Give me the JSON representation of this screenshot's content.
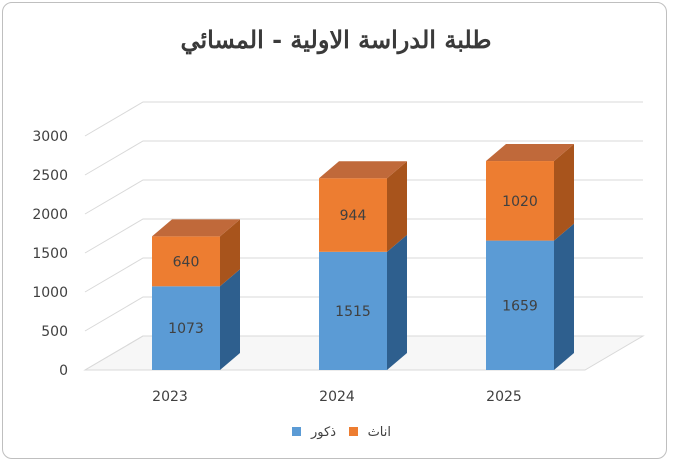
{
  "chart_data": {
    "type": "bar",
    "stacked": true,
    "three_d": true,
    "title": "طلبة الدراسة الاولية - المسائي",
    "categories": [
      "2023",
      "2024",
      "2025"
    ],
    "series": [
      {
        "name": "ذكور",
        "values": [
          1073,
          1515,
          1659
        ],
        "color": "#5b9bd5",
        "side_color": "#2e5f8e"
      },
      {
        "name": "اناث",
        "values": [
          640,
          944,
          1020
        ],
        "color": "#ed7d31",
        "side_color": "#a8541c"
      }
    ],
    "ylim": [
      0,
      3000
    ],
    "yticks": [
      "0",
      "500",
      "1000",
      "1500",
      "2000",
      "2500",
      "3000"
    ],
    "grid": true,
    "legend": "bottom"
  }
}
